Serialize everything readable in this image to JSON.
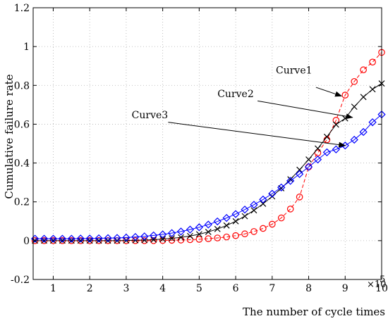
{
  "chart_data": {
    "type": "line",
    "title": "",
    "xlabel": "The number of cycle times",
    "ylabel": "Cumulative failure rate",
    "x_multiplier_label": "×10",
    "x_multiplier_exponent": "5",
    "xlim": [
      0.45,
      10
    ],
    "ylim": [
      -0.2,
      1.2
    ],
    "xticks": [
      "1",
      "2",
      "3",
      "4",
      "5",
      "6",
      "7",
      "8",
      "9",
      "10"
    ],
    "yticks": [
      "-0.2",
      "0",
      "0.2",
      "0.4",
      "0.6",
      "0.8",
      "1",
      "1.2"
    ],
    "grid": true,
    "legend": "none",
    "x": [
      0.5,
      0.75,
      1,
      1.25,
      1.5,
      1.75,
      2,
      2.25,
      2.5,
      2.75,
      3,
      3.25,
      3.5,
      3.75,
      4,
      4.25,
      4.5,
      4.75,
      5,
      5.25,
      5.5,
      5.75,
      6,
      6.25,
      6.5,
      6.75,
      7,
      7.25,
      7.5,
      7.75,
      8,
      8.25,
      8.5,
      8.75,
      9,
      9.25,
      9.5,
      9.75,
      10
    ],
    "series": [
      {
        "name": "Curve1",
        "color": "#ff0000",
        "marker": "circle",
        "line_style": "dashed",
        "values": [
          0,
          0,
          0,
          0,
          0,
          0,
          0,
          0,
          0,
          0,
          0,
          0,
          0,
          0,
          0.001,
          0.002,
          0.003,
          0.005,
          0.007,
          0.01,
          0.014,
          0.019,
          0.026,
          0.035,
          0.047,
          0.063,
          0.085,
          0.117,
          0.163,
          0.225,
          0.38,
          0.452,
          0.52,
          0.62,
          0.75,
          0.82,
          0.88,
          0.92,
          0.97
        ]
      },
      {
        "name": "Curve2",
        "color": "#000000",
        "marker": "x",
        "line_style": "solid",
        "values": [
          0,
          0,
          0,
          0,
          0,
          0,
          0,
          0,
          0,
          0,
          0.001,
          0.002,
          0.003,
          0.005,
          0.008,
          0.012,
          0.017,
          0.024,
          0.033,
          0.045,
          0.06,
          0.078,
          0.1,
          0.126,
          0.156,
          0.19,
          0.228,
          0.27,
          0.316,
          0.365,
          0.418,
          0.475,
          0.535,
          0.598,
          0.63,
          0.69,
          0.74,
          0.78,
          0.81
        ]
      },
      {
        "name": "Curve3",
        "color": "#0000ff",
        "marker": "diamond",
        "line_style": "solid",
        "values": [
          0.01,
          0.01,
          0.01,
          0.01,
          0.01,
          0.011,
          0.011,
          0.012,
          0.013,
          0.014,
          0.016,
          0.019,
          0.022,
          0.027,
          0.032,
          0.039,
          0.047,
          0.057,
          0.069,
          0.083,
          0.099,
          0.117,
          0.137,
          0.16,
          0.185,
          0.212,
          0.242,
          0.274,
          0.308,
          0.343,
          0.38,
          0.418,
          0.455,
          0.47,
          0.49,
          0.52,
          0.56,
          0.61,
          0.65
        ]
      }
    ],
    "annotations": [
      {
        "text": "Curve1",
        "text_at": [
          7.1,
          0.86
        ],
        "arrow_from": [
          8.2,
          0.79
        ],
        "arrow_to": [
          8.9,
          0.745
        ]
      },
      {
        "text": "Curve2",
        "text_at": [
          5.5,
          0.74
        ],
        "arrow_from": [
          6.6,
          0.72
        ],
        "arrow_to": [
          9.2,
          0.635
        ]
      },
      {
        "text": "Curve3",
        "text_at": [
          3.15,
          0.63
        ],
        "arrow_from": [
          4.15,
          0.61
        ],
        "arrow_to": [
          9.0,
          0.49
        ]
      }
    ]
  }
}
